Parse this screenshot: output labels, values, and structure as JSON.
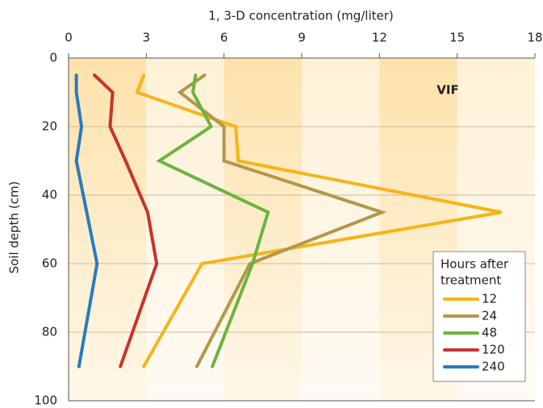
{
  "chart_data": {
    "type": "line",
    "x_label": "1, 3-D concentration (mg/liter)",
    "y_label": "Soil depth (cm)",
    "annotation": "VIF",
    "legend_title": [
      "Hours after",
      "treatment"
    ],
    "legend": "lower right",
    "y": [
      5,
      10,
      20,
      30,
      45,
      60,
      90
    ],
    "xlim": [
      0,
      18
    ],
    "xticks": [
      0,
      3,
      6,
      9,
      12,
      15,
      18
    ],
    "ylim": [
      0,
      100
    ],
    "yticks": [
      0,
      20,
      40,
      60,
      80,
      100
    ],
    "y_inverted": true,
    "grid": true,
    "series": [
      {
        "name": "12",
        "color": "#f6b417",
        "values": [
          2.9,
          2.65,
          6.45,
          6.55,
          16.7,
          5.15,
          2.9
        ]
      },
      {
        "name": "24",
        "color": "#b5964a",
        "values": [
          5.25,
          4.3,
          6.0,
          6.0,
          12.1,
          7.0,
          4.95
        ]
      },
      {
        "name": "48",
        "color": "#6cb43f",
        "values": [
          4.9,
          4.8,
          5.5,
          3.5,
          7.7,
          7.1,
          5.55
        ]
      },
      {
        "name": "120",
        "color": "#c8332b",
        "values": [
          1.0,
          1.7,
          1.6,
          2.2,
          3.05,
          3.4,
          2.0
        ]
      },
      {
        "name": "240",
        "color": "#2a7bbd",
        "values": [
          0.3,
          0.3,
          0.5,
          0.3,
          0.7,
          1.1,
          0.4
        ]
      }
    ]
  }
}
